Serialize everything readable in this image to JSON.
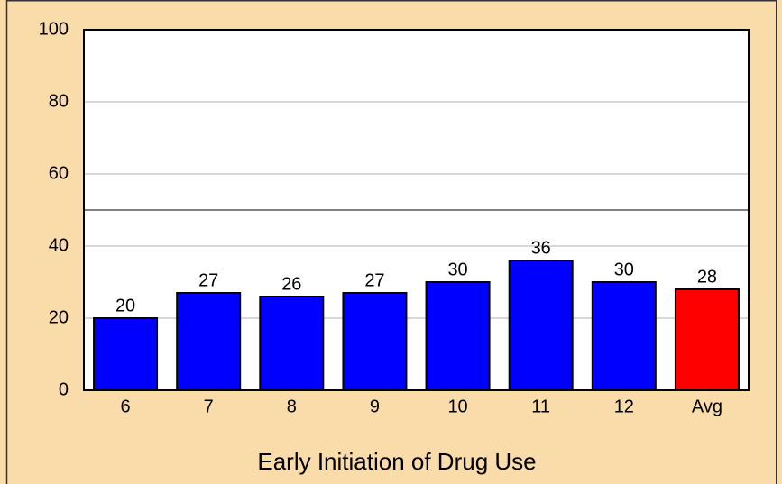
{
  "chart_data": {
    "type": "bar",
    "x_label": "Early Initiation of Drug Use",
    "categories": [
      "6",
      "7",
      "8",
      "9",
      "10",
      "11",
      "12",
      "Avg"
    ],
    "values": [
      20,
      27,
      26,
      27,
      30,
      36,
      30,
      28
    ],
    "colors": [
      "#0000ff",
      "#0000ff",
      "#0000ff",
      "#0000ff",
      "#0000ff",
      "#0000ff",
      "#0000ff",
      "#ff0000"
    ],
    "ylim": [
      0,
      100
    ],
    "yticks": [
      0,
      20,
      40,
      60,
      80,
      100
    ],
    "grid": true,
    "reference_line": 50
  }
}
